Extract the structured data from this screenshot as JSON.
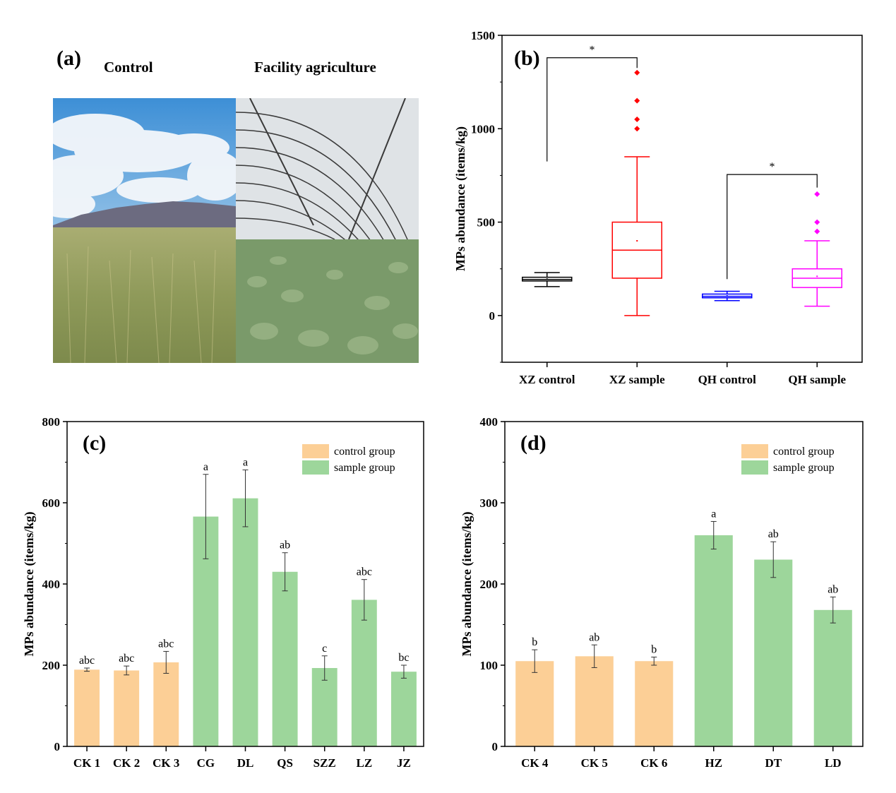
{
  "panel_a": {
    "label": "(a)",
    "left_title": "Control",
    "right_title": "Facility agriculture",
    "left_photo": "wheat-field-mountains-photo",
    "right_photo": "greenhouse-vegetables-photo"
  },
  "chart_data": [
    {
      "id": "b",
      "type": "box",
      "panel_label": "(b)",
      "ylabel": "MPs abundance (items/kg)",
      "ylim": [
        -250,
        1500
      ],
      "yticks": [
        0,
        500,
        1000,
        1500
      ],
      "categories": [
        "XZ control",
        "XZ sample",
        "QH control",
        "QH sample"
      ],
      "boxes": [
        {
          "name": "XZ control",
          "color": "#000000",
          "whisker_low": 155,
          "q1": 185,
          "median": 193,
          "q3": 205,
          "whisker_high": 230,
          "mean": 195,
          "outliers": []
        },
        {
          "name": "XZ sample",
          "color": "#ff0000",
          "whisker_low": 0,
          "q1": 200,
          "median": 350,
          "q3": 500,
          "whisker_high": 850,
          "mean": 400,
          "outliers": [
            1000,
            1050,
            1150,
            1300
          ]
        },
        {
          "name": "QH control",
          "color": "#0000ff",
          "whisker_low": 80,
          "q1": 95,
          "median": 103,
          "q3": 115,
          "whisker_high": 130,
          "mean": 105,
          "outliers": []
        },
        {
          "name": "QH sample",
          "color": "#ff00ff",
          "whisker_low": 50,
          "q1": 150,
          "median": 200,
          "q3": 250,
          "whisker_high": 400,
          "mean": 210,
          "outliers": [
            450,
            500,
            650
          ]
        }
      ],
      "significance": [
        {
          "from": "XZ control",
          "to": "XZ sample",
          "symbol": "*",
          "bracket_y": 1380,
          "left_drop": 825,
          "right_drop": 1325
        },
        {
          "from": "QH control",
          "to": "QH sample",
          "symbol": "*",
          "bracket_y": 755,
          "left_drop": 195,
          "right_drop": 685
        }
      ]
    },
    {
      "id": "c",
      "type": "bar",
      "panel_label": "(c)",
      "ylabel": "MPs abundance (items/kg)",
      "ylim": [
        0,
        800
      ],
      "yticks": [
        0,
        200,
        400,
        600,
        800
      ],
      "categories": [
        "CK 1",
        "CK 2",
        "CK 3",
        "CG",
        "DL",
        "QS",
        "SZZ",
        "LZ",
        "JZ"
      ],
      "values": [
        189,
        187,
        207,
        566,
        611,
        430,
        193,
        361,
        184
      ],
      "errors": [
        4,
        11,
        27,
        104,
        70,
        47,
        30,
        50,
        16
      ],
      "groups": [
        "control",
        "control",
        "control",
        "sample",
        "sample",
        "sample",
        "sample",
        "sample",
        "sample"
      ],
      "letters": [
        "abc",
        "abc",
        "abc",
        "a",
        "a",
        "ab",
        "c",
        "abc",
        "bc"
      ],
      "legend": [
        {
          "key": "control",
          "label": "control group",
          "color": "#fccf96"
        },
        {
          "key": "sample",
          "label": "sample group",
          "color": "#9dd69b"
        }
      ],
      "legend_position": "top-right"
    },
    {
      "id": "d",
      "type": "bar",
      "panel_label": "(d)",
      "ylabel": "MPs abundance (items/kg)",
      "ylim": [
        0,
        400
      ],
      "yticks": [
        0,
        100,
        200,
        300,
        400
      ],
      "categories": [
        "CK 4",
        "CK 5",
        "CK 6",
        "HZ",
        "DT",
        "LD"
      ],
      "values": [
        105,
        111,
        105,
        260,
        230,
        168
      ],
      "errors": [
        14,
        14,
        5,
        17,
        22,
        16
      ],
      "groups": [
        "control",
        "control",
        "control",
        "sample",
        "sample",
        "sample"
      ],
      "letters": [
        "b",
        "ab",
        "b",
        "a",
        "ab",
        "ab"
      ],
      "legend": [
        {
          "key": "control",
          "label": "control group",
          "color": "#fccf96"
        },
        {
          "key": "sample",
          "label": "sample group",
          "color": "#9dd69b"
        }
      ],
      "legend_position": "top-right"
    }
  ]
}
